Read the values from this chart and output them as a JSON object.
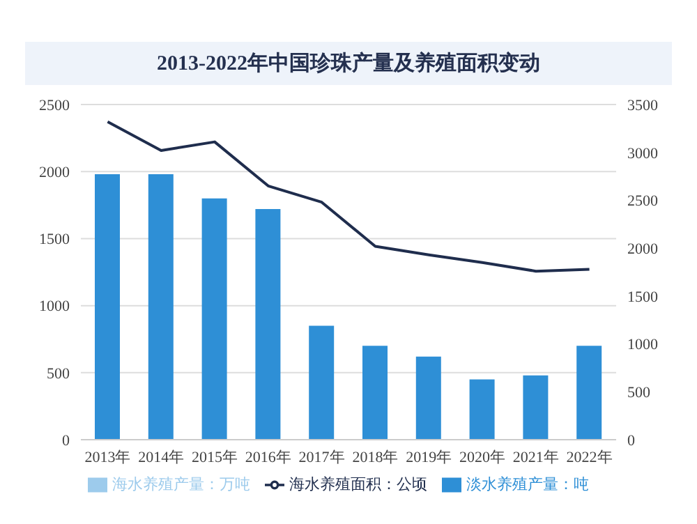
{
  "chart_data": {
    "type": "bar",
    "title": "2013-2022年中国珍珠产量及养殖面积变动",
    "categories": [
      "2013年",
      "2014年",
      "2015年",
      "2016年",
      "2017年",
      "2018年",
      "2019年",
      "2020年",
      "2021年",
      "2022年"
    ],
    "series": [
      {
        "name": "淡水养殖产量：吨",
        "color": "#2e8fd6",
        "values": [
          1980,
          1980,
          1800,
          1720,
          850,
          700,
          620,
          450,
          480,
          700
        ]
      },
      {
        "name": "海水养殖产量：万吨",
        "color": "#9dcbec",
        "values": [
          null,
          null,
          null,
          null,
          null,
          null,
          null,
          null,
          null,
          null
        ]
      },
      {
        "name": "海水养殖面积：公顷",
        "type": "line",
        "axis": "y2",
        "color": "#1f2d4d",
        "values": [
          3320,
          3020,
          3110,
          2650,
          2480,
          2020,
          1930,
          1850,
          1760,
          1780
        ]
      }
    ],
    "stacked": true,
    "ylim": [
      0,
      2500
    ],
    "yticks": [
      0,
      500,
      1000,
      1500,
      2000,
      2500
    ],
    "y2lim": [
      0,
      3500
    ],
    "y2ticks": [
      0,
      500,
      1000,
      1500,
      2000,
      2500,
      3000,
      3500
    ],
    "grid": "y",
    "legend": "bottom",
    "marker": "none"
  }
}
